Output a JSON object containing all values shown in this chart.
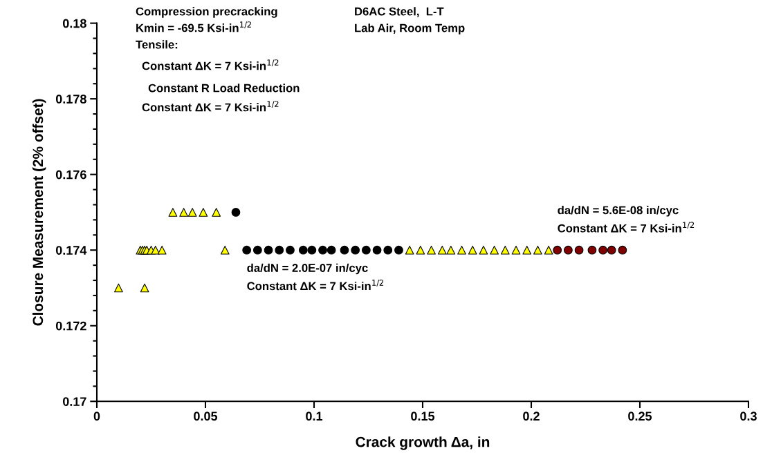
{
  "chart_data": {
    "type": "scatter",
    "xlabel": "Crack growth Δa, in",
    "ylabel": "Closure Measurement (2% offset)",
    "xlim": [
      0,
      0.3
    ],
    "xticks": [
      0,
      0.05,
      0.1,
      0.15,
      0.2,
      0.25,
      0.3
    ],
    "ylim": [
      0.17,
      0.18
    ],
    "yticks": [
      0.17,
      {
        "value": 0.1704,
        "label": null
      },
      {
        "value": 0.1708,
        "label": null
      },
      {
        "value": 0.1712,
        "label": null
      },
      {
        "value": 0.1716,
        "label": null
      },
      0.172,
      {
        "value": 0.1724,
        "label": null
      },
      {
        "value": 0.1728,
        "label": null
      },
      {
        "value": 0.1732,
        "label": null
      },
      {
        "value": 0.1736,
        "label": null
      },
      0.174,
      {
        "value": 0.1744,
        "label": null
      },
      {
        "value": 0.1748,
        "label": null
      },
      {
        "value": 0.1752,
        "label": null
      },
      {
        "value": 0.1756,
        "label": null
      },
      0.176,
      {
        "value": 0.1764,
        "label": null
      },
      {
        "value": 0.1768,
        "label": null
      },
      {
        "value": 0.1772,
        "label": null
      },
      {
        "value": 0.1776,
        "label": null
      },
      0.178,
      {
        "value": 0.1784,
        "label": null
      },
      {
        "value": 0.1788,
        "label": null
      },
      {
        "value": 0.1792,
        "label": null
      },
      {
        "value": 0.1796,
        "label": null
      },
      0.18
    ],
    "grid": false,
    "legend": false,
    "series": [
      {
        "color": "#ffff00",
        "marker": "triangle",
        "x": [
          0.01,
          0.022,
          0.02,
          0.021,
          0.022,
          0.023,
          0.025,
          0.027,
          0.03,
          0.035,
          0.04,
          0.044,
          0.049,
          0.055,
          0.059,
          0.144,
          0.149,
          0.154,
          0.159,
          0.163,
          0.168,
          0.173,
          0.178,
          0.183,
          0.188,
          0.193,
          0.198,
          0.203,
          0.208
        ],
        "values": [
          0.173,
          0.173,
          0.174,
          0.174,
          0.174,
          0.174,
          0.174,
          0.174,
          0.174,
          0.175,
          0.175,
          0.175,
          0.175,
          0.175,
          0.174,
          0.174,
          0.174,
          0.174,
          0.174,
          0.174,
          0.174,
          0.174,
          0.174,
          0.174,
          0.174,
          0.174,
          0.174,
          0.174,
          0.174
        ]
      },
      {
        "color": "#000000",
        "marker": "circle",
        "x": [
          0.064,
          0.069,
          0.074,
          0.079,
          0.084,
          0.089,
          0.095,
          0.099,
          0.104,
          0.108,
          0.114,
          0.119,
          0.124,
          0.129,
          0.134,
          0.139
        ],
        "values": [
          0.175,
          0.174,
          0.174,
          0.174,
          0.174,
          0.174,
          0.174,
          0.174,
          0.174,
          0.174,
          0.174,
          0.174,
          0.174,
          0.174,
          0.174,
          0.174
        ]
      },
      {
        "color": "#800000",
        "marker": "circle",
        "x": [
          0.212,
          0.217,
          0.222,
          0.228,
          0.233,
          0.237,
          0.242
        ],
        "values": [
          0.174,
          0.174,
          0.174,
          0.174,
          0.174,
          0.174,
          0.174
        ]
      }
    ],
    "annotations": [
      "Compression precracking",
      "Kmin = -69.5 Ksi-in$^{1/2}$",
      "Tensile:",
      "Constant ΔK = 7 Ksi-in$^{1/2}$",
      "Constant R Load Reduction",
      "Constant ΔK = 7 Ksi-in$^{1/2}$",
      "D6AC Steel,  L-T",
      "Lab Air, Room Temp",
      {
        "text": "da/dN = 2.0E-07 in/cyc\nConstant ΔK = 7 Ksi-in$^{1/2}$",
        "x": 0.069,
        "y": 0.174
      },
      {
        "text": "da/dN = 5.6E-08 in/cyc\nConstant ΔK = 7 Ksi-in$^{1/2}$",
        "x": 0.212,
        "y": 0.174
      }
    ]
  }
}
